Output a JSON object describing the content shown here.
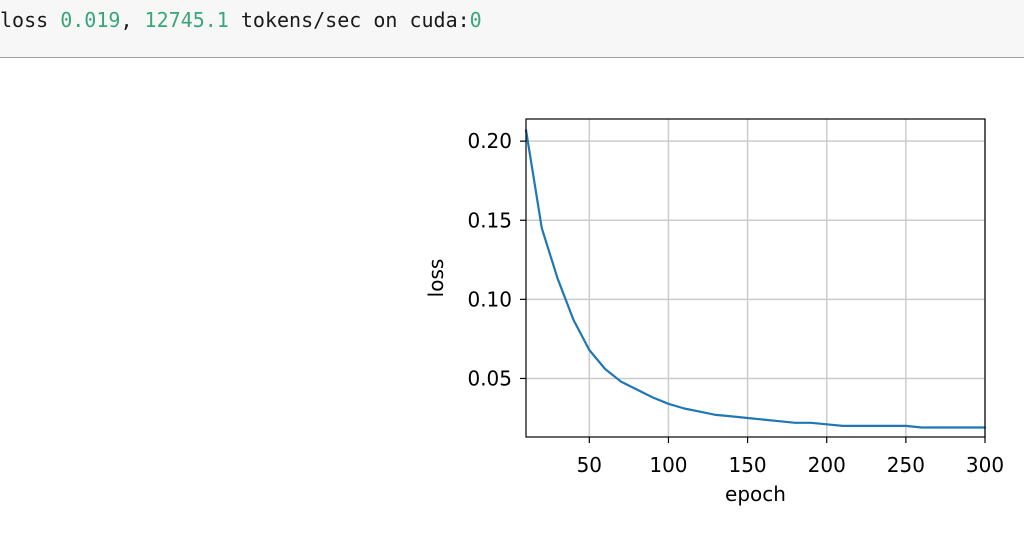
{
  "console": {
    "label_loss": "loss",
    "loss_value": "0.019",
    "sep": ",",
    "tokens_value": "12745.1",
    "label_tokens": "tokens/sec on cuda:",
    "device_index": "0"
  },
  "colors": {
    "line": "#1f77b4",
    "grid": "#cccccc",
    "number_text": "#3aa67a"
  },
  "chart_data": {
    "type": "line",
    "xlabel": "epoch",
    "ylabel": "loss",
    "xlim": [
      10,
      300
    ],
    "ylim": [
      0.013,
      0.214
    ],
    "xticks": [
      50,
      100,
      150,
      200,
      250,
      300
    ],
    "xtick_labels": [
      "50",
      "100",
      "150",
      "200",
      "250",
      "300"
    ],
    "yticks": [
      0.05,
      0.1,
      0.15,
      0.2
    ],
    "ytick_labels": [
      "0.05",
      "0.10",
      "0.15",
      "0.20"
    ],
    "grid": true,
    "series": [
      {
        "x": [
          10,
          20,
          30,
          40,
          50,
          60,
          70,
          80,
          90,
          100,
          110,
          120,
          130,
          140,
          150,
          160,
          170,
          180,
          190,
          200,
          210,
          220,
          230,
          240,
          250,
          260,
          270,
          280,
          290,
          300
        ],
        "values": [
          0.207,
          0.145,
          0.113,
          0.087,
          0.068,
          0.056,
          0.048,
          0.043,
          0.038,
          0.034,
          0.031,
          0.029,
          0.027,
          0.026,
          0.025,
          0.024,
          0.023,
          0.022,
          0.022,
          0.021,
          0.02,
          0.02,
          0.02,
          0.02,
          0.02,
          0.019,
          0.019,
          0.019,
          0.019,
          0.019
        ]
      }
    ]
  }
}
